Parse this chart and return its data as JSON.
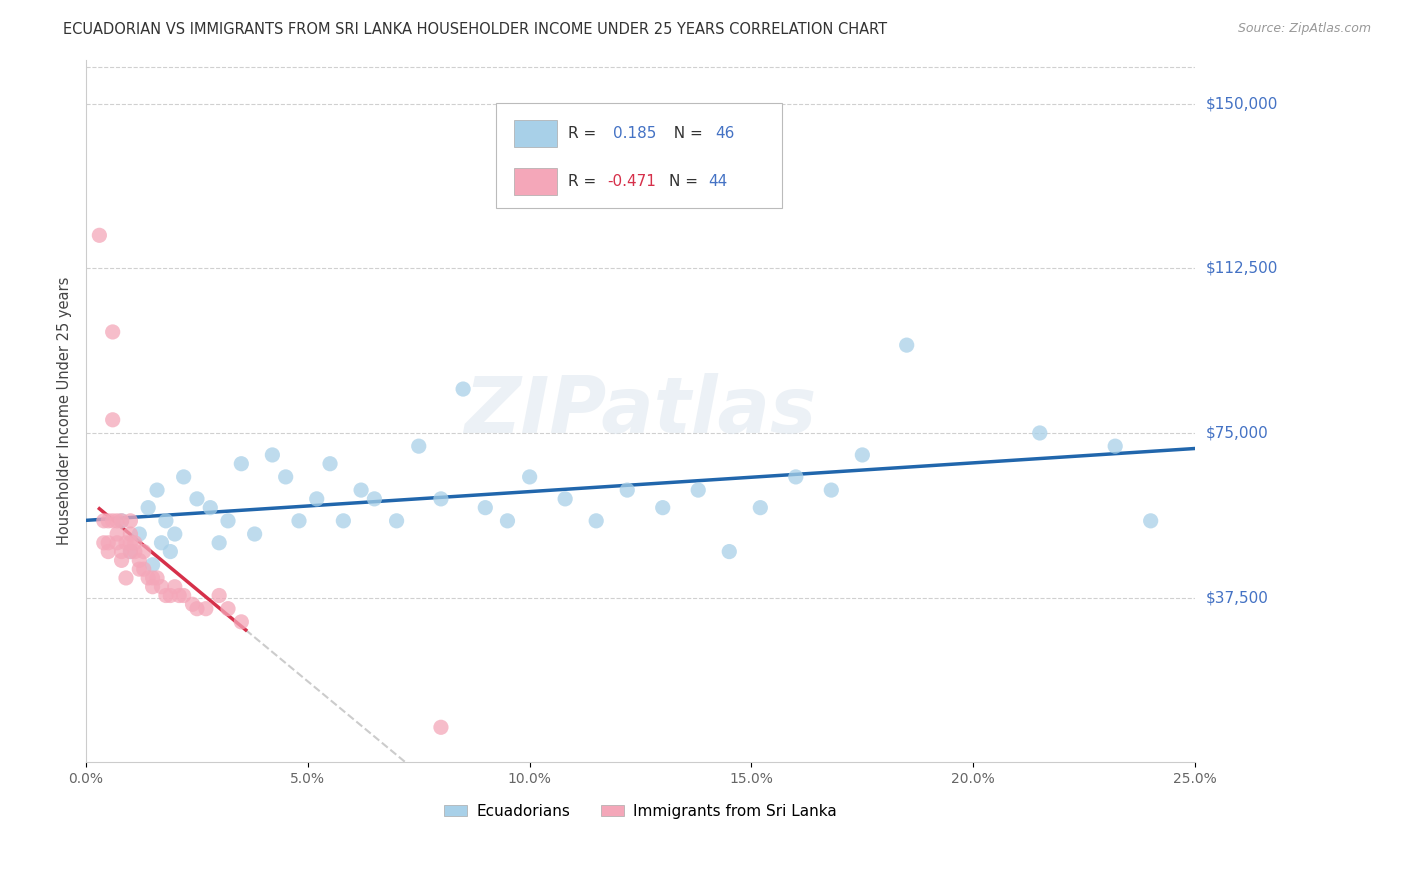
{
  "title": "ECUADORIAN VS IMMIGRANTS FROM SRI LANKA HOUSEHOLDER INCOME UNDER 25 YEARS CORRELATION CHART",
  "source": "Source: ZipAtlas.com",
  "ylabel": "Householder Income Under 25 years",
  "watermark": "ZIPatlas",
  "legend_ecuadorians": "Ecuadorians",
  "legend_immigrants": "Immigrants from Sri Lanka",
  "r_blue": "0.185",
  "n_blue": "46",
  "r_pink": "-0.471",
  "n_pink": "44",
  "ytick_labels": [
    "$37,500",
    "$75,000",
    "$112,500",
    "$150,000"
  ],
  "ytick_values": [
    37500,
    75000,
    112500,
    150000
  ],
  "ymin": 0,
  "ymax": 160000,
  "xmin": 0.0,
  "xmax": 0.25,
  "blue_color": "#a8d0e8",
  "pink_color": "#f4a7b9",
  "trend_blue": "#2166ac",
  "trend_pink": "#d6304a",
  "trend_pink_dash": "#cccccc",
  "blue_scatter_x": [
    0.008,
    0.01,
    0.012,
    0.014,
    0.015,
    0.016,
    0.017,
    0.018,
    0.019,
    0.02,
    0.022,
    0.025,
    0.028,
    0.03,
    0.032,
    0.035,
    0.038,
    0.042,
    0.045,
    0.048,
    0.052,
    0.055,
    0.058,
    0.062,
    0.065,
    0.07,
    0.075,
    0.08,
    0.085,
    0.09,
    0.095,
    0.1,
    0.108,
    0.115,
    0.122,
    0.13,
    0.138,
    0.145,
    0.152,
    0.16,
    0.168,
    0.175,
    0.185,
    0.215,
    0.232,
    0.24
  ],
  "blue_scatter_y": [
    55000,
    48000,
    52000,
    58000,
    45000,
    62000,
    50000,
    55000,
    48000,
    52000,
    65000,
    60000,
    58000,
    50000,
    55000,
    68000,
    52000,
    70000,
    65000,
    55000,
    60000,
    68000,
    55000,
    62000,
    60000,
    55000,
    72000,
    60000,
    85000,
    58000,
    55000,
    65000,
    60000,
    55000,
    62000,
    58000,
    62000,
    48000,
    58000,
    65000,
    62000,
    70000,
    95000,
    75000,
    72000,
    55000
  ],
  "pink_scatter_x": [
    0.003,
    0.004,
    0.004,
    0.005,
    0.005,
    0.005,
    0.006,
    0.006,
    0.006,
    0.007,
    0.007,
    0.007,
    0.008,
    0.008,
    0.008,
    0.009,
    0.009,
    0.01,
    0.01,
    0.01,
    0.01,
    0.011,
    0.011,
    0.012,
    0.012,
    0.013,
    0.013,
    0.014,
    0.015,
    0.015,
    0.016,
    0.017,
    0.018,
    0.019,
    0.02,
    0.021,
    0.022,
    0.024,
    0.025,
    0.027,
    0.03,
    0.032,
    0.035,
    0.08
  ],
  "pink_scatter_y": [
    120000,
    55000,
    50000,
    55000,
    50000,
    48000,
    98000,
    78000,
    55000,
    55000,
    52000,
    50000,
    48000,
    46000,
    55000,
    50000,
    42000,
    55000,
    52000,
    50000,
    48000,
    50000,
    48000,
    46000,
    44000,
    48000,
    44000,
    42000,
    42000,
    40000,
    42000,
    40000,
    38000,
    38000,
    40000,
    38000,
    38000,
    36000,
    35000,
    35000,
    38000,
    35000,
    32000,
    8000
  ],
  "xtick_positions": [
    0.0,
    0.05,
    0.1,
    0.15,
    0.2,
    0.25
  ],
  "xtick_labels": [
    "0.0%",
    "5.0%",
    "10.0%",
    "15.0%",
    "20.0%",
    "25.0%"
  ]
}
